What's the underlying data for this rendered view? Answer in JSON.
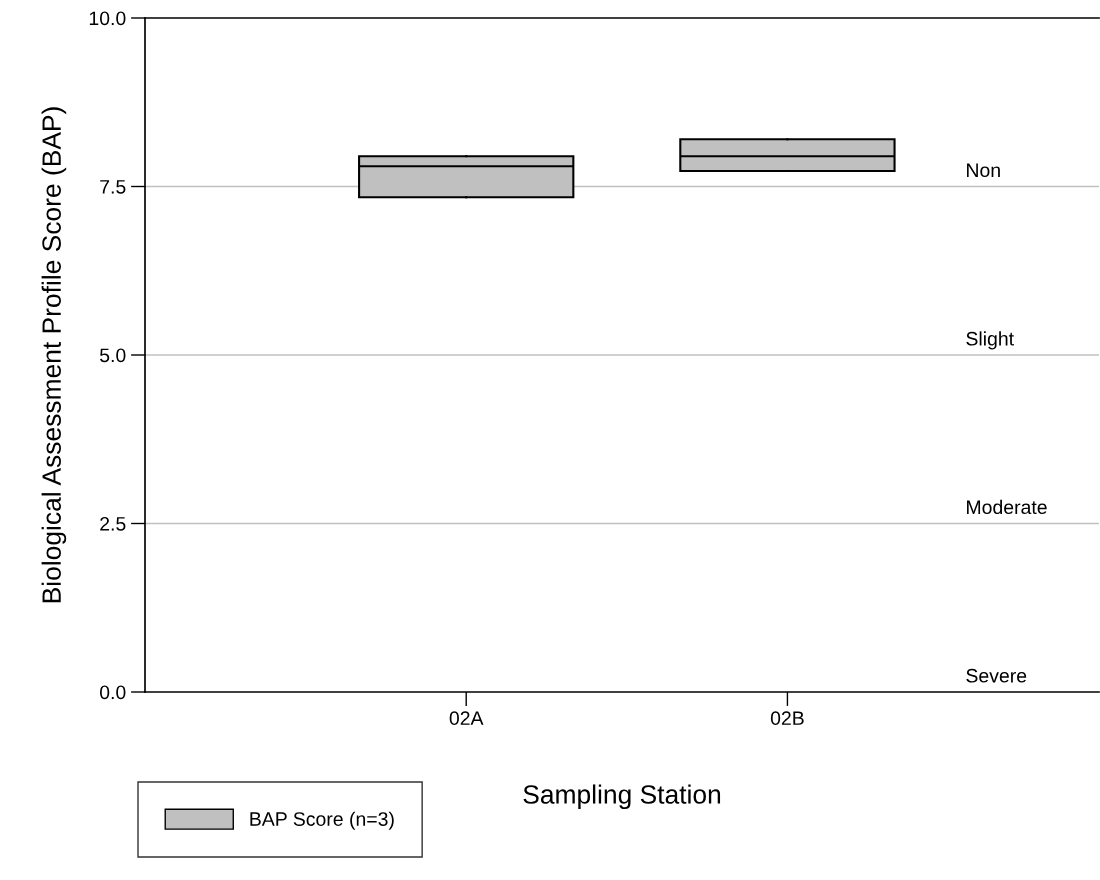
{
  "chart_data": {
    "type": "box",
    "xlabel": "Sampling Station",
    "ylabel": "Biological Assessment Profile Score (BAP)",
    "categories": [
      "02A",
      "02B"
    ],
    "series": [
      {
        "name": "BAP Score (n=3)",
        "color": "#c0c0c0",
        "boxes": [
          {
            "low": 7.34,
            "q1": 7.34,
            "median": 7.8,
            "q3": 7.95,
            "high": 7.95
          },
          {
            "low": 7.73,
            "q1": 7.73,
            "median": 7.95,
            "q3": 8.2,
            "high": 8.2
          }
        ]
      }
    ],
    "ylim": [
      0,
      10
    ],
    "yticks": [
      {
        "value": 0,
        "label": "0.0"
      },
      {
        "value": 2.5,
        "label": "2.5"
      },
      {
        "value": 5,
        "label": "5.0"
      },
      {
        "value": 7.5,
        "label": "7.5"
      },
      {
        "value": 10,
        "label": "10.0"
      }
    ],
    "ref_lines": [
      {
        "axis": "y",
        "value": 7.5,
        "label": "Non",
        "color": "#c0c0c0"
      },
      {
        "axis": "y",
        "value": 5,
        "label": "Slight",
        "color": "#c0c0c0"
      },
      {
        "axis": "y",
        "value": 2.5,
        "label": "Moderate",
        "color": "#c0c0c0"
      }
    ],
    "annotations": [
      "Severe"
    ],
    "legend": "bottom left",
    "grid": false
  }
}
